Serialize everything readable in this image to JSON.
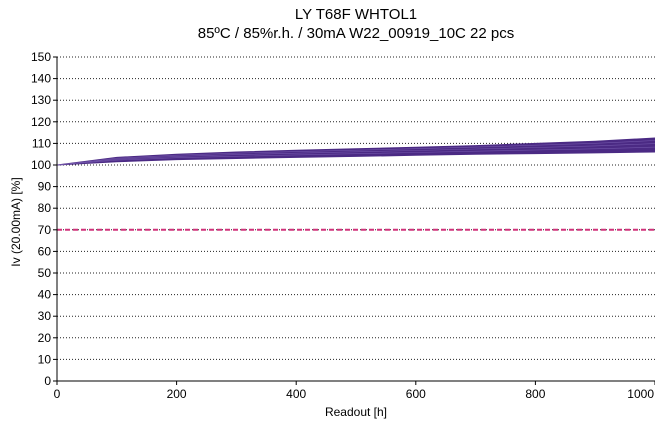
{
  "chart_data": {
    "type": "area",
    "title": "LY T68F  WHTOL1",
    "subtitle": "85ºC / 85%r.h. / 30mA  W22_00919_10C  22 pcs",
    "xlabel": "Readout [h]",
    "ylabel": "Iv (20.00mA) [%]",
    "xlim": [
      0,
      1000
    ],
    "ylim": [
      0,
      150
    ],
    "x_ticks": [
      0,
      200,
      400,
      600,
      800,
      1000
    ],
    "y_ticks": [
      0,
      10,
      20,
      30,
      40,
      50,
      60,
      70,
      80,
      90,
      100,
      110,
      120,
      130,
      140,
      150
    ],
    "grid": "horizontal dotted",
    "series": [
      {
        "x": [
          0,
          100,
          200,
          300,
          400,
          500,
          600,
          700,
          800,
          900,
          1000
        ],
        "lower": [
          100,
          101.5,
          102.5,
          103,
          103.5,
          104,
          104.5,
          105,
          105.3,
          105.6,
          106
        ],
        "upper": [
          100,
          103.5,
          105,
          106,
          106.8,
          107.5,
          108.2,
          109,
          110,
          111,
          112.5
        ],
        "color": "#4b2a84"
      }
    ],
    "threshold": {
      "y": 70,
      "color": "#d0327a",
      "style": "dashed"
    }
  }
}
